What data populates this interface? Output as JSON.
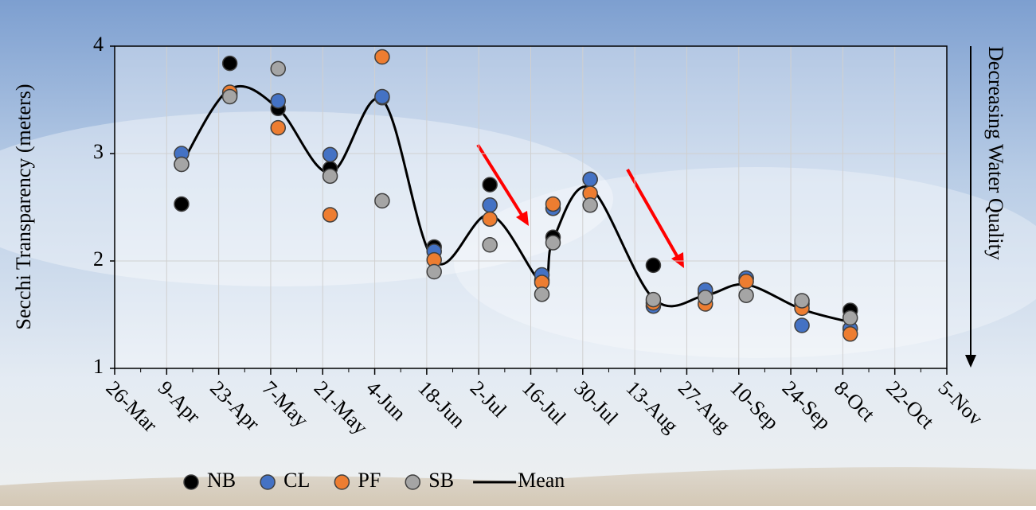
{
  "chart_data": {
    "type": "scatter-line",
    "y_label": "Secchi Transparency (meters)",
    "right_label": "Decreasing Water Quality",
    "x": [
      103,
      116,
      129,
      143,
      157,
      171,
      186,
      200,
      203,
      213,
      230,
      244,
      255,
      270,
      283
    ],
    "series": [
      {
        "name": "NB",
        "color": "#000000",
        "values": [
          2.53,
          3.84,
          3.42,
          2.86,
          3.52,
          2.13,
          2.71,
          1.82,
          2.22,
          2.76,
          1.96,
          1.7,
          1.84,
          1.6,
          1.54
        ]
      },
      {
        "name": "CL",
        "color": "#4472c4",
        "values": [
          3.0,
          3.55,
          3.49,
          2.99,
          3.53,
          2.09,
          2.52,
          1.87,
          2.49,
          2.76,
          1.58,
          1.73,
          1.84,
          1.4,
          1.37
        ]
      },
      {
        "name": "PF",
        "color": "#ed7d31",
        "values": [
          2.9,
          3.57,
          3.24,
          2.43,
          3.9,
          2.01,
          2.39,
          1.8,
          2.53,
          2.63,
          1.61,
          1.6,
          1.81,
          1.56,
          1.32
        ]
      },
      {
        "name": "SB",
        "color": "#a5a5a5",
        "values": [
          2.9,
          3.53,
          3.79,
          2.79,
          2.56,
          1.9,
          2.15,
          1.69,
          2.17,
          2.52,
          1.64,
          1.66,
          1.68,
          1.63,
          1.47
        ]
      },
      {
        "name": "Mean",
        "color": "#000000",
        "line": true,
        "values": [
          2.9,
          3.6,
          3.42,
          2.82,
          3.5,
          2.0,
          2.43,
          1.8,
          2.2,
          2.68,
          1.65,
          1.68,
          1.78,
          1.55,
          1.43
        ]
      }
    ],
    "xlim": [
      85,
      309
    ],
    "xticks": [
      {
        "value": 85,
        "label": "26-Mar"
      },
      {
        "value": 99,
        "label": "9-Apr"
      },
      {
        "value": 113,
        "label": "23-Apr"
      },
      {
        "value": 127,
        "label": "7-May"
      },
      {
        "value": 141,
        "label": "21-May"
      },
      {
        "value": 155,
        "label": "4-Jun"
      },
      {
        "value": 169,
        "label": "18-Jun"
      },
      {
        "value": 183,
        "label": "2-Jul"
      },
      {
        "value": 197,
        "label": "16-Jul"
      },
      {
        "value": 211,
        "label": "30-Jul"
      },
      {
        "value": 225,
        "label": "13-Aug"
      },
      {
        "value": 239,
        "label": "27-Aug"
      },
      {
        "value": 253,
        "label": "10-Sep"
      },
      {
        "value": 267,
        "label": "24-Sep"
      },
      {
        "value": 281,
        "label": "8-Oct"
      },
      {
        "value": 295,
        "label": "22-Oct"
      },
      {
        "value": 309,
        "label": "5-Nov"
      }
    ],
    "ylim": [
      1,
      4
    ],
    "yticks": [
      1,
      2,
      3,
      4
    ],
    "grid": true,
    "legend": "bottom"
  }
}
